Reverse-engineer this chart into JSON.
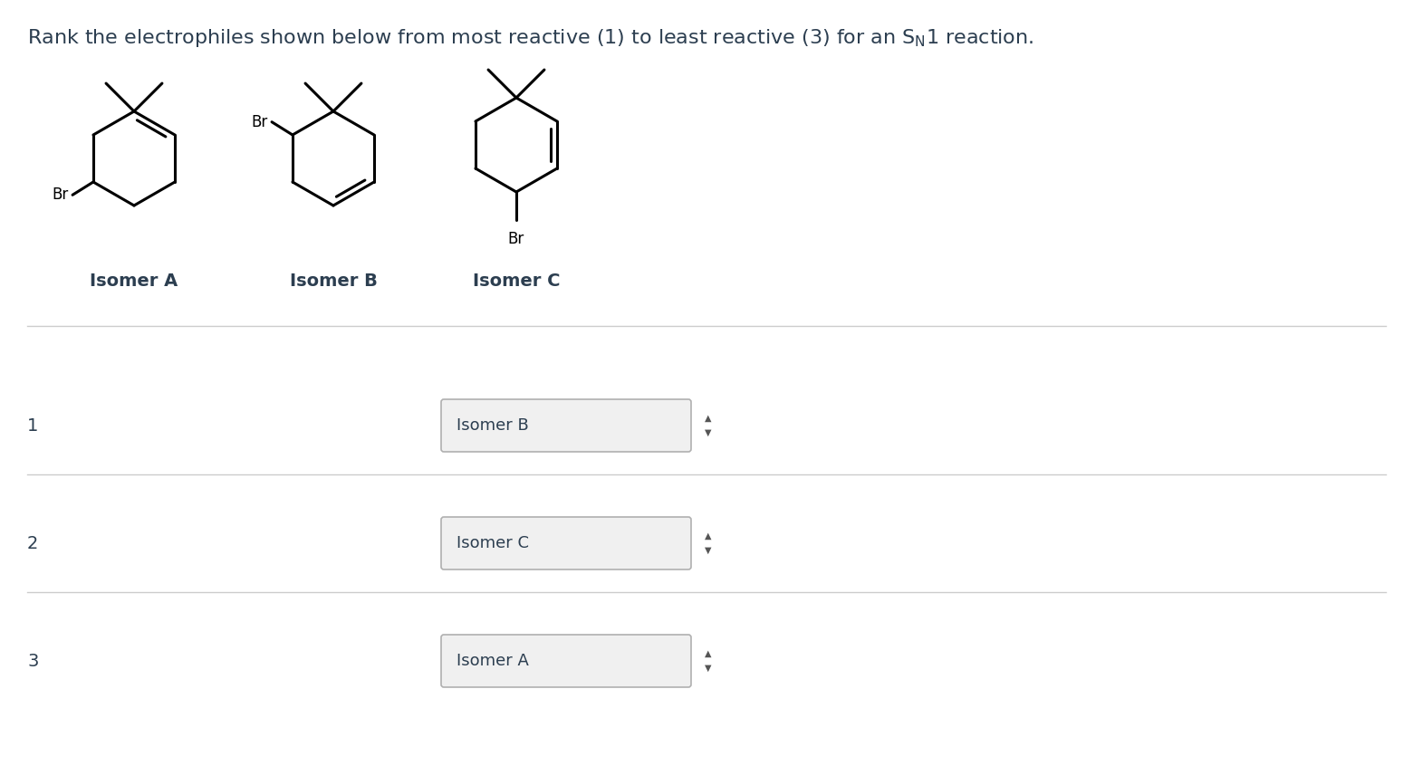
{
  "background_color": "#ffffff",
  "label_color": "#2c3e50",
  "separator_color": "#cccccc",
  "isomer_labels": [
    "Isomer A",
    "Isomer B",
    "Isomer C"
  ],
  "rank_labels": [
    "1",
    "2",
    "3"
  ],
  "dropdown_values": [
    "Isomer B",
    "Isomer C",
    "Isomer A"
  ],
  "dropdown_bg": "#f0f0f0",
  "dropdown_border": "#b0b0b0",
  "title_fontsize": 16,
  "label_fontsize": 14,
  "rank_fontsize": 14,
  "dd_text_fontsize": 13,
  "br_fontsize": 12
}
